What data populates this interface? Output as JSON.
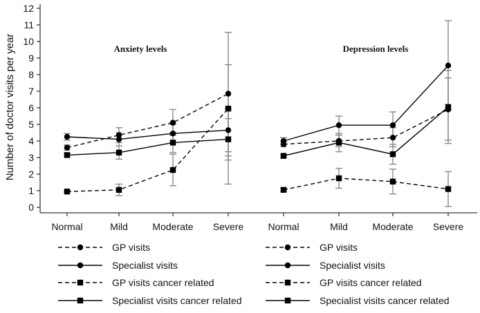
{
  "chart_data": {
    "type": "line",
    "ylabel": "Number of doctor visits per year",
    "ylim": [
      0,
      12
    ],
    "yticks": [
      0,
      1,
      2,
      3,
      4,
      5,
      6,
      7,
      8,
      9,
      10,
      11,
      12
    ],
    "grid": false,
    "legend_position": "bottom",
    "panels": [
      {
        "title": "Anxiety levels",
        "categories": [
          "Normal",
          "Mild",
          "Moderate",
          "Severe"
        ],
        "series": [
          {
            "name": "GP visits",
            "line": "dashed",
            "marker": "circle",
            "values": [
              3.6,
              4.35,
              5.1,
              6.85
            ],
            "error_bars": [
              [
                3.45,
                3.75
              ],
              [
                3.9,
                4.8
              ],
              [
                4.35,
                5.9
              ],
              [
                3.1,
                10.55
              ]
            ]
          },
          {
            "name": "Specialist visits",
            "line": "solid",
            "marker": "circle",
            "values": [
              4.25,
              4.1,
              4.45,
              4.65
            ],
            "error_bars": [
              [
                4.05,
                4.45
              ],
              [
                3.7,
                4.5
              ],
              [
                3.9,
                5.0
              ],
              [
                3.35,
                5.95
              ]
            ]
          },
          {
            "name": "GP visits cancer related",
            "line": "dashed",
            "marker": "square",
            "values": [
              0.95,
              1.05,
              2.25,
              5.95
            ],
            "error_bars": [
              [
                0.9,
                1.0
              ],
              [
                0.7,
                1.4
              ],
              [
                1.3,
                3.2
              ],
              [
                1.4,
                8.6
              ]
            ]
          },
          {
            "name": "Specialist visits cancer related",
            "line": "solid",
            "marker": "square",
            "values": [
              3.15,
              3.3,
              3.9,
              4.1
            ],
            "error_bars": [
              [
                3.05,
                3.25
              ],
              [
                2.9,
                3.7
              ],
              [
                3.3,
                4.5
              ],
              [
                2.85,
                5.35
              ]
            ]
          }
        ]
      },
      {
        "title": "Depression levels",
        "categories": [
          "Normal",
          "Mild",
          "Moderate",
          "Severe"
        ],
        "series": [
          {
            "name": "GP visits",
            "line": "dashed",
            "marker": "circle",
            "values": [
              3.8,
              4.0,
              4.2,
              5.9
            ],
            "error_bars": [
              [
                3.65,
                3.95
              ],
              [
                3.65,
                4.35
              ],
              [
                3.65,
                4.8
              ],
              [
                4.05,
                7.8
              ]
            ]
          },
          {
            "name": "Specialist visits",
            "line": "solid",
            "marker": "circle",
            "values": [
              4.0,
              4.95,
              4.95,
              8.55
            ],
            "error_bars": [
              [
                3.8,
                4.2
              ],
              [
                4.35,
                5.5
              ],
              [
                4.2,
                5.75
              ],
              [
                5.85,
                11.25
              ]
            ]
          },
          {
            "name": "GP visits cancer related",
            "line": "dashed",
            "marker": "square",
            "values": [
              1.05,
              1.75,
              1.55,
              1.1
            ],
            "error_bars": [
              [
                0.95,
                1.15
              ],
              [
                1.15,
                2.35
              ],
              [
                0.8,
                2.3
              ],
              [
                0.05,
                2.15
              ]
            ]
          },
          {
            "name": "Specialist visits cancer related",
            "line": "solid",
            "marker": "square",
            "values": [
              3.1,
              3.9,
              3.2,
              6.05
            ],
            "error_bars": [
              [
                3.0,
                3.2
              ],
              [
                3.35,
                4.45
              ],
              [
                2.6,
                3.8
              ],
              [
                3.85,
                8.25
              ]
            ]
          }
        ]
      }
    ]
  }
}
